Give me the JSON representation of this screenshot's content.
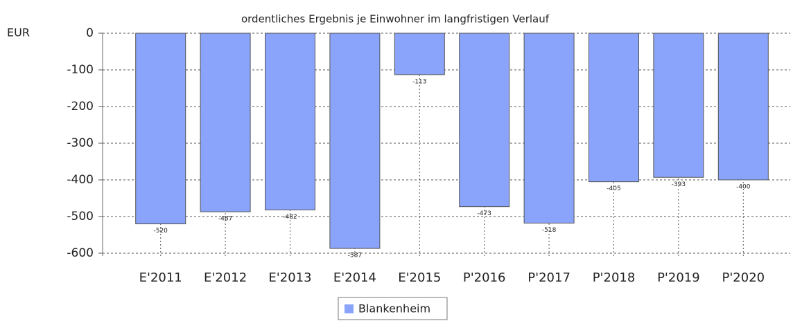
{
  "chart_data": {
    "type": "bar",
    "title": "ordentliches Ergebnis je Einwohner im langfristigen Verlauf",
    "y_label": "EUR",
    "categories": [
      "E'2011",
      "E'2012",
      "E'2013",
      "E'2014",
      "E'2015",
      "P'2016",
      "P'2017",
      "P'2018",
      "P'2019",
      "P'2020"
    ],
    "series": [
      {
        "name": "Blankenheim",
        "color": "#8aa3fb",
        "values": [
          -520,
          -487,
          -482,
          -587,
          -113,
          -473,
          -518,
          -405,
          -393,
          -400
        ]
      }
    ],
    "ylim": [
      -600,
      0
    ],
    "yticks": [
      0,
      -100,
      -200,
      -300,
      -400,
      -500,
      -600
    ],
    "grid": true,
    "legend": "bottom"
  }
}
